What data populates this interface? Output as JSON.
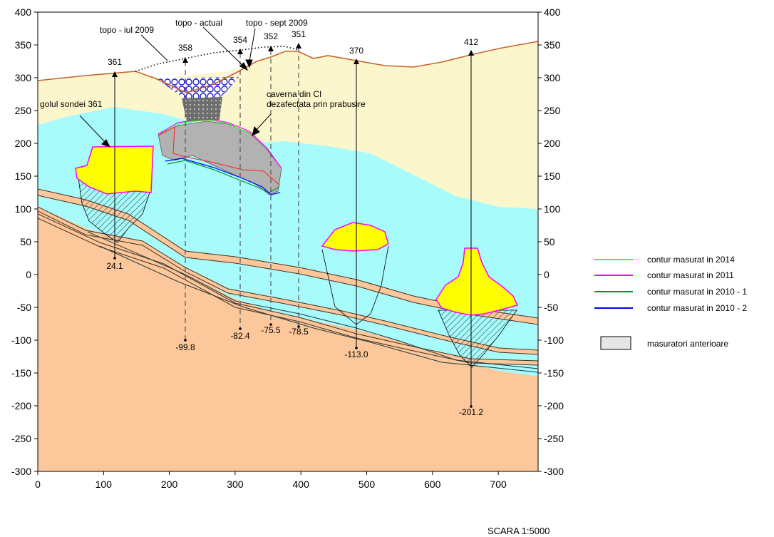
{
  "axes": {
    "y_ticks": [
      "400",
      "350",
      "300",
      "250",
      "200",
      "150",
      "100",
      "50",
      "0",
      "-50",
      "-100",
      "-150",
      "-200",
      "-250",
      "-300"
    ],
    "x_ticks": [
      "0",
      "100",
      "200",
      "300",
      "400",
      "500",
      "600",
      "700"
    ]
  },
  "colors": {
    "upper_layer": "#fbf6cc",
    "salt_layer": "#a8fbfb",
    "base_layer": "#fcc79a",
    "cavern_fill": "#ffff00",
    "old_measurement_fill": "#b2b2b2",
    "surface_line": "#c8642c"
  },
  "labels": {
    "topo_iul": "topo - iul 2009",
    "topo_actual": "topo - actual",
    "topo_sept": "topo - sept 2009",
    "golul": "golul sondei 361",
    "caverna_line1": "caverna din CI",
    "caverna_line2": "dezafectata prin prabusire"
  },
  "wells": [
    {
      "name": "361",
      "bottom": "24.1"
    },
    {
      "name": "358",
      "bottom": "-99.8"
    },
    {
      "name": "354",
      "bottom": "-82.4"
    },
    {
      "name": "352",
      "bottom": "-75.5"
    },
    {
      "name": "351",
      "bottom": "-78.5"
    },
    {
      "name": "370",
      "bottom": "-113.0"
    },
    {
      "name": "412",
      "bottom": "-201.2"
    }
  ],
  "legend": [
    {
      "label": "contur masurat in 2014",
      "color": "#33ff33"
    },
    {
      "label": "contur masurat in 2011",
      "color": "#ff00ff"
    },
    {
      "label": "contur masurat in 2010 - 1",
      "color": "#009933"
    },
    {
      "label": "contur masurat in 2010 - 2",
      "color": "#0000ff"
    },
    {
      "label": "masuratori anterioare",
      "color": "#e6e6e6"
    }
  ],
  "scale": "SCARA 1:5000"
}
